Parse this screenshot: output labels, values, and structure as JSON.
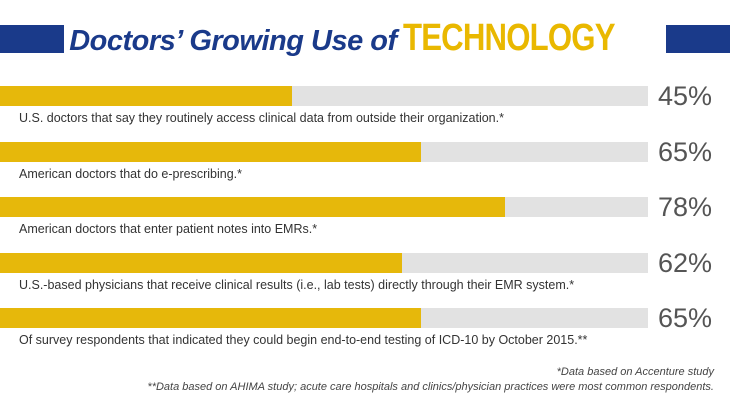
{
  "title": {
    "part1": "Doctors’ Growing Use of",
    "part2": "TECHNOLOGY"
  },
  "chart_data": {
    "type": "bar",
    "orientation": "horizontal",
    "xlim": [
      0,
      100
    ],
    "unit": "%",
    "categories": [
      "U.S. doctors that say they routinely access clinical data from outside their organization.*",
      "American doctors that do e-prescribing.*",
      "American doctors that enter patient notes into EMRs.*",
      "U.S.-based physicians that receive clinical results (i.e., lab tests) directly through their EMR system.*",
      "Of survey respondents that indicated they could begin end-to-end testing of ICD-10 by October 2015.**"
    ],
    "values": [
      45,
      65,
      78,
      62,
      65
    ],
    "value_labels": [
      "45%",
      "65%",
      "78%",
      "62%",
      "65%"
    ],
    "colors": {
      "fill": "#e6b80b",
      "track": "#e2e2e2"
    }
  },
  "footnotes": [
    "*Data based on Accenture study",
    "**Data based on AHIMA study; acute care hospitals and clinics/physician practices were most common respondents."
  ],
  "colors": {
    "title_blue": "#1a3a8a",
    "title_gold": "#e9b800"
  }
}
